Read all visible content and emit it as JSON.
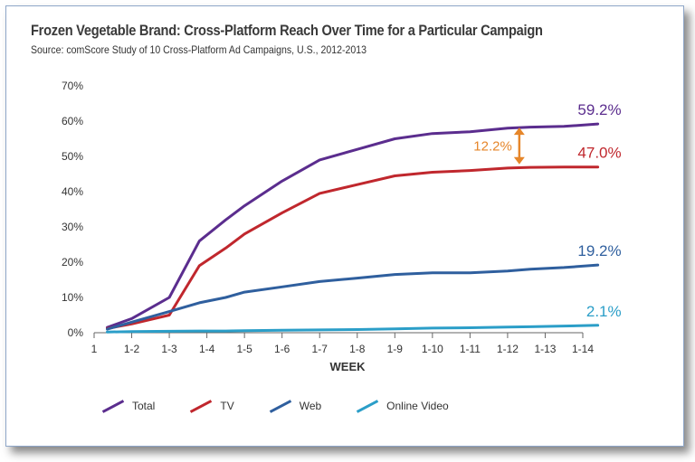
{
  "chart_data": {
    "type": "line",
    "title": "Frozen Vegetable Brand: Cross-Platform Reach Over Time for a Particular Campaign",
    "subtitle": "Source: comScore Study of 10 Cross-Platform Ad Campaigns, U.S., 2012-2013",
    "xlabel": "WEEK",
    "ylabel": "",
    "ylim": [
      0,
      70
    ],
    "y_ticks": [
      "0%",
      "10%",
      "20%",
      "30%",
      "40%",
      "50%",
      "60%",
      "70%"
    ],
    "x_ticks": [
      "1",
      "1-2",
      "1-3",
      "1-4",
      "1-5",
      "1-6",
      "1-7",
      "1-8",
      "1-9",
      "1-10",
      "1-11",
      "1-12",
      "1-13",
      "1-14"
    ],
    "x_points": [
      1.35,
      2.0,
      3.0,
      3.8,
      4.5,
      5.0,
      6.0,
      7.0,
      8.0,
      9.0,
      10.0,
      11.0,
      12.0,
      12.6,
      13.5,
      14.4
    ],
    "series": [
      {
        "name": "Total",
        "color": "#5b2d8e",
        "values": [
          1.5,
          4,
          10,
          26,
          32,
          36,
          43,
          49,
          52,
          55,
          56.5,
          57,
          58,
          58.3,
          58.5,
          59.2
        ],
        "end_label": "59.2%"
      },
      {
        "name": "TV",
        "color": "#c0272d",
        "values": [
          1.2,
          2.5,
          5,
          19,
          24,
          28,
          34,
          39.5,
          42,
          44.5,
          45.5,
          46,
          46.7,
          46.9,
          47,
          47.0
        ],
        "end_label": "47.0%"
      },
      {
        "name": "Web",
        "color": "#2f5f9e",
        "values": [
          1.0,
          3,
          6,
          8.5,
          10,
          11.5,
          13,
          14.5,
          15.5,
          16.5,
          17,
          17,
          17.5,
          18,
          18.5,
          19.2
        ],
        "end_label": "19.2%"
      },
      {
        "name": "Online Video",
        "color": "#2b9ec8",
        "values": [
          0.2,
          0.3,
          0.4,
          0.5,
          0.5,
          0.6,
          0.7,
          0.8,
          0.9,
          1.1,
          1.3,
          1.4,
          1.6,
          1.7,
          1.9,
          2.1
        ],
        "end_label": "2.1%"
      }
    ],
    "annotation": {
      "text": "12.2%",
      "color": "#e6862a",
      "from": 47.0,
      "to": 59.2,
      "x": 12.6
    }
  }
}
